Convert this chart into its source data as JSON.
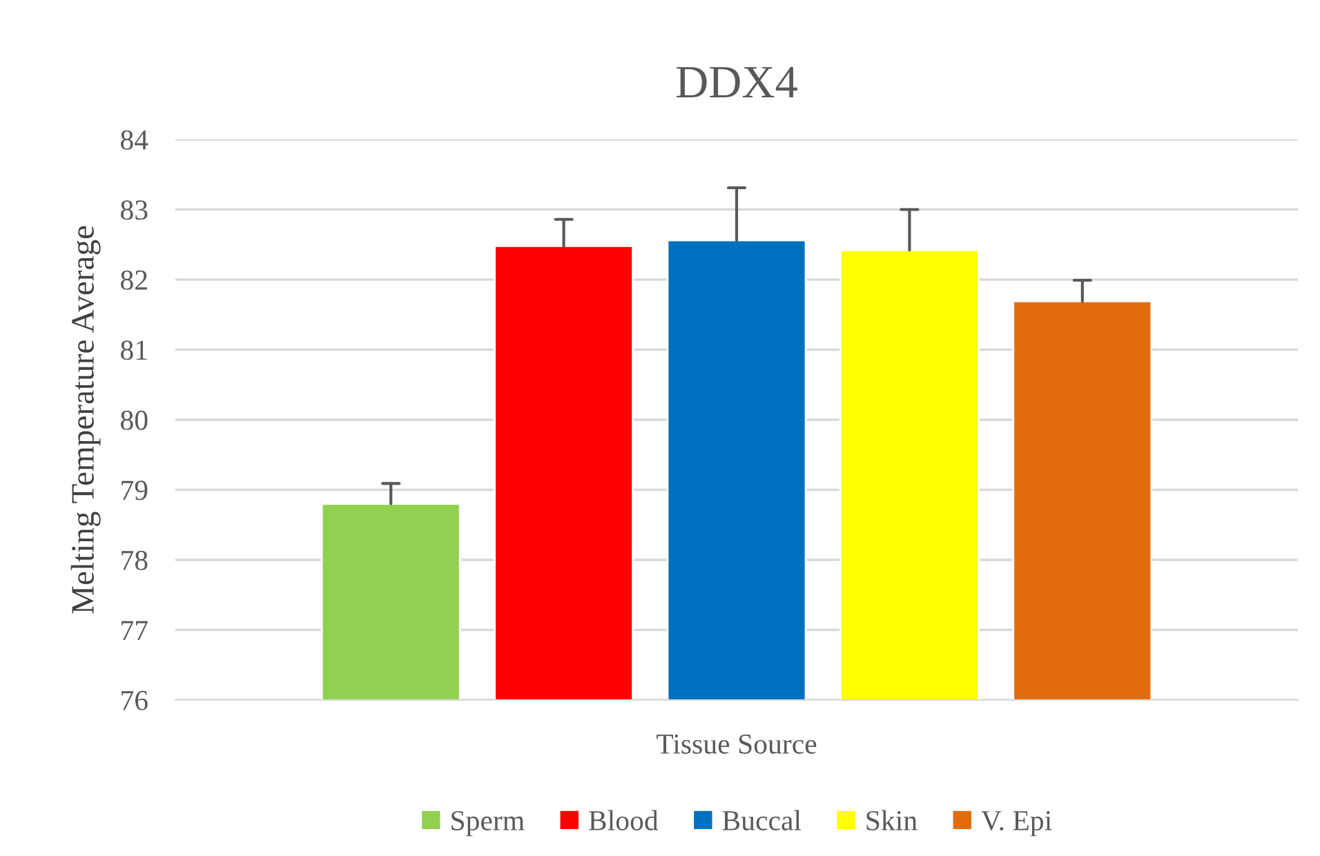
{
  "chart_data": {
    "type": "bar",
    "title": "DDX4",
    "xlabel": "Tissue Source",
    "ylabel": "Melting Temperature Average",
    "categories": [
      null
    ],
    "series": [
      {
        "name": "Sperm",
        "color": "#92d050",
        "values": [
          78.8
        ],
        "errors": [
          [
            78.8,
            79.09
          ]
        ]
      },
      {
        "name": "Blood",
        "color": "#ff0000",
        "values": [
          82.48
        ],
        "errors": [
          [
            82.48,
            82.86
          ]
        ]
      },
      {
        "name": "Buccal",
        "color": "#0070c0",
        "values": [
          82.56
        ],
        "errors": [
          [
            82.56,
            83.31
          ]
        ]
      },
      {
        "name": "Skin",
        "color": "#ffff00",
        "values": [
          82.42
        ],
        "errors": [
          [
            82.42,
            83.0
          ]
        ]
      },
      {
        "name": "V. Epi",
        "color": "#e36c0a",
        "values": [
          81.69
        ],
        "errors": [
          [
            81.69,
            81.99
          ]
        ]
      }
    ],
    "ylim": [
      76,
      84
    ],
    "yticks": [
      76,
      77,
      78,
      79,
      80,
      81,
      82,
      83,
      84
    ],
    "grid": "y",
    "legend": "bottom"
  }
}
